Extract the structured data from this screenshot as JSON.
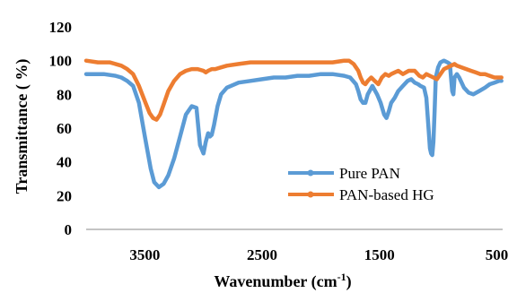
{
  "chart_data": {
    "type": "line",
    "title": "",
    "xlabel": "Wavenumber (cm",
    "xlabel_sup": "-1",
    "xlabel_close": ")",
    "ylabel": "Transmittance ( %)",
    "xlim": [
      4000,
      450
    ],
    "x_reversed": true,
    "ylim": [
      0,
      120
    ],
    "x_ticks": [
      3500,
      2500,
      1500,
      500
    ],
    "y_ticks": [
      0,
      20,
      40,
      60,
      80,
      100,
      120
    ],
    "grid": false,
    "legend_position": "lower-right",
    "series": [
      {
        "name": "Pure PAN",
        "color": "#5b9bd5",
        "x": [
          4000,
          3850,
          3750,
          3700,
          3650,
          3600,
          3550,
          3500,
          3450,
          3420,
          3380,
          3340,
          3300,
          3250,
          3200,
          3150,
          3100,
          3060,
          3030,
          3000,
          2980,
          2960,
          2945,
          2930,
          2910,
          2880,
          2850,
          2800,
          2700,
          2600,
          2500,
          2400,
          2300,
          2200,
          2100,
          2000,
          1900,
          1800,
          1750,
          1700,
          1680,
          1660,
          1640,
          1620,
          1600,
          1560,
          1520,
          1490,
          1460,
          1440,
          1420,
          1400,
          1370,
          1340,
          1300,
          1260,
          1230,
          1200,
          1170,
          1150,
          1120,
          1100,
          1080,
          1070,
          1060,
          1050,
          1040,
          1030,
          1020,
          1000,
          980,
          950,
          920,
          900,
          880,
          870,
          860,
          840,
          820,
          780,
          740,
          700,
          650,
          600,
          560,
          520,
          480,
          460
        ],
        "y": [
          92,
          92,
          91,
          90,
          88,
          85,
          75,
          55,
          36,
          28,
          25,
          27,
          32,
          42,
          55,
          68,
          73,
          72,
          50,
          45,
          52,
          57,
          55,
          56,
          62,
          73,
          80,
          84,
          87,
          88,
          89,
          90,
          90,
          91,
          91,
          92,
          92,
          91,
          90,
          86,
          82,
          77,
          75,
          75,
          80,
          85,
          80,
          75,
          68,
          66,
          70,
          75,
          78,
          82,
          85,
          88,
          89,
          87,
          86,
          85,
          84,
          78,
          58,
          48,
          45,
          44,
          52,
          70,
          90,
          96,
          99,
          100,
          99,
          98,
          82,
          80,
          90,
          92,
          90,
          84,
          81,
          80,
          82,
          84,
          86,
          87,
          88,
          88
        ]
      },
      {
        "name": "PAN-based HG",
        "color": "#ed7d31",
        "x": [
          4000,
          3900,
          3800,
          3750,
          3700,
          3650,
          3600,
          3550,
          3500,
          3460,
          3430,
          3400,
          3370,
          3340,
          3300,
          3250,
          3200,
          3150,
          3100,
          3050,
          3000,
          2980,
          2960,
          2930,
          2900,
          2850,
          2800,
          2700,
          2600,
          2500,
          2400,
          2300,
          2200,
          2100,
          2000,
          1900,
          1800,
          1760,
          1720,
          1700,
          1680,
          1660,
          1640,
          1620,
          1600,
          1570,
          1540,
          1510,
          1480,
          1450,
          1420,
          1400,
          1370,
          1340,
          1300,
          1250,
          1200,
          1160,
          1130,
          1100,
          1070,
          1040,
          1010,
          980,
          950,
          920,
          890,
          860,
          840,
          800,
          760,
          720,
          680,
          640,
          600,
          560,
          520,
          480,
          460
        ],
        "y": [
          100,
          99,
          99,
          98,
          97,
          95,
          92,
          85,
          76,
          69,
          66,
          65,
          68,
          74,
          82,
          88,
          92,
          94,
          95,
          95,
          94,
          93,
          94,
          95,
          95,
          96,
          97,
          98,
          99,
          99,
          99,
          99,
          99,
          99,
          99,
          99,
          100,
          100,
          98,
          96,
          94,
          90,
          87,
          86,
          88,
          90,
          88,
          86,
          90,
          92,
          91,
          92,
          93,
          94,
          92,
          94,
          94,
          91,
          90,
          92,
          91,
          90,
          89,
          92,
          95,
          96,
          97,
          98,
          97,
          96,
          95,
          94,
          93,
          92,
          92,
          91,
          90,
          90,
          90
        ]
      }
    ]
  }
}
